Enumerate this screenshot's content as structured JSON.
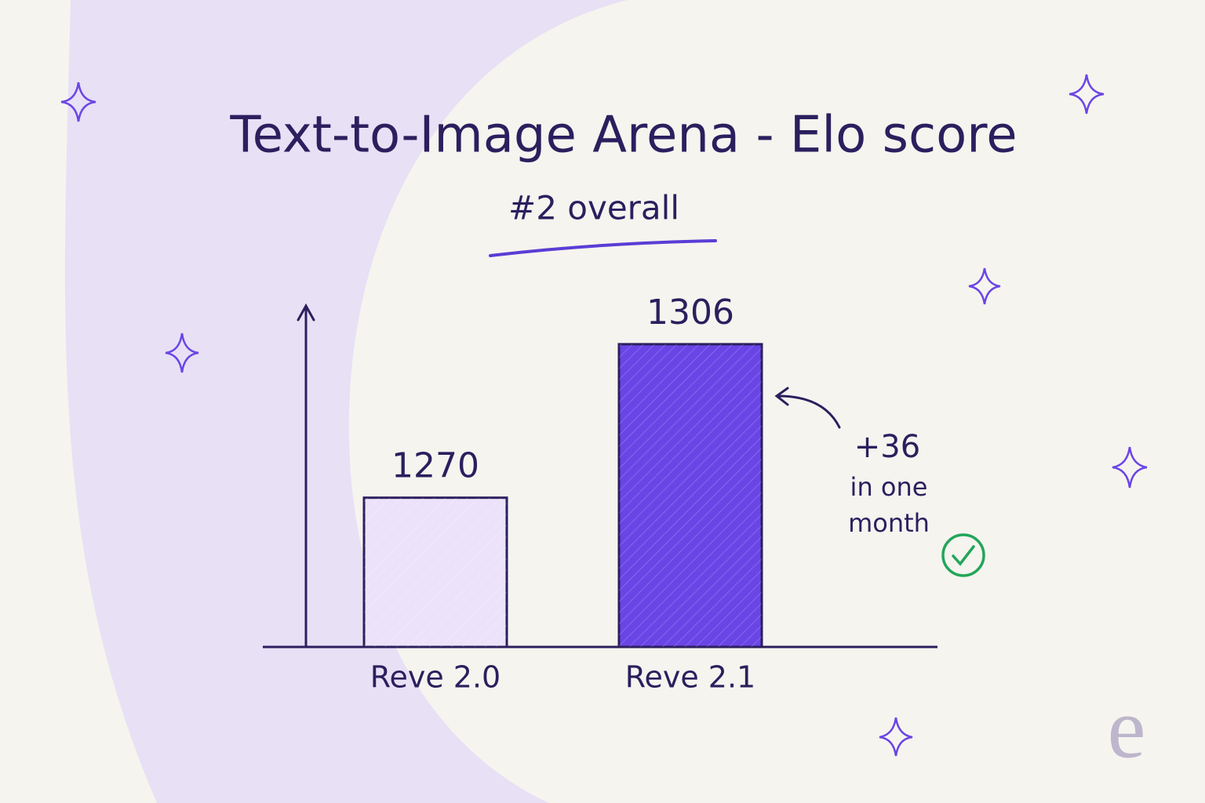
{
  "chart_data": {
    "type": "bar",
    "title": "Text-to-Image Arena - Elo score",
    "subtitle": "#2 overall",
    "categories": [
      "Reve 2.0",
      "Reve 2.1"
    ],
    "values": [
      1270,
      1306
    ],
    "colors": [
      "#ece3fa",
      "#6a45e6"
    ],
    "ylim": [
      1235,
      1315
    ],
    "annotation": {
      "text": "+36",
      "note": "in one month"
    },
    "logo": "e"
  }
}
